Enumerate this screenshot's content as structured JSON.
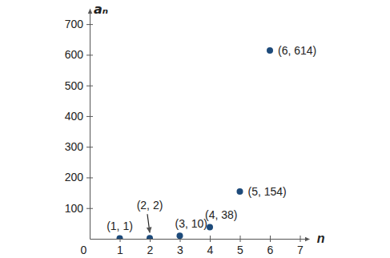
{
  "chart_data": {
    "type": "scatter",
    "x_label": "n",
    "y_label": "aₙ",
    "x": [
      1,
      2,
      3,
      4,
      5,
      6
    ],
    "values": [
      1,
      2,
      10,
      38,
      154,
      614
    ],
    "value_labels": [
      "(1, 1)",
      "(2, 2)",
      "(3, 10)",
      "(4, 38)",
      "(5, 154)",
      "(6, 614)"
    ],
    "data_labels": true,
    "xlim": [
      0,
      7.3
    ],
    "ylim": [
      0,
      750
    ],
    "xticks": [
      0,
      1,
      2,
      3,
      4,
      5,
      6,
      7
    ],
    "yticks": [
      100,
      200,
      300,
      400,
      500,
      600,
      700
    ],
    "grid": false,
    "color": "#1d4a7a",
    "marker": "circle"
  }
}
